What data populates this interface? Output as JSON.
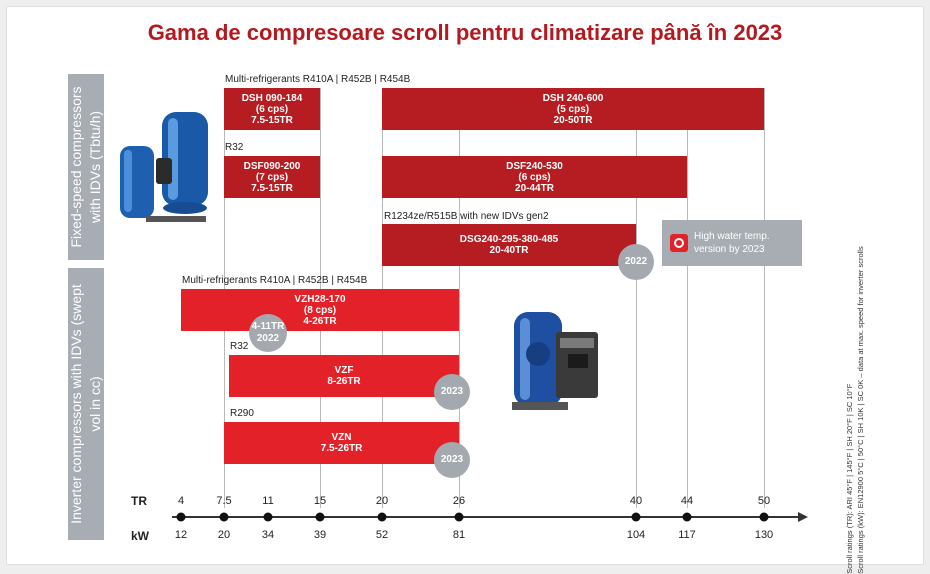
{
  "title": "Gama de compresoare scroll pentru climatizare până în 2023",
  "side_labels": {
    "fixed": "Fixed-speed compressors with IDVs (Tbtu/h)",
    "inverter": "Inverter compressors with IDVs (swept vol in cc)"
  },
  "groups": {
    "multi_fixed": "Multi-refrigerants R410A | R452B | R454B",
    "r32_fixed": "R32",
    "r1234": "R1234ze/R515B with new IDVs gen2",
    "multi_inv": "Multi-refrigerants R410A | R452B | R454B",
    "r32_inv": "R32",
    "r290": "R290"
  },
  "bars": {
    "dsh1": [
      "DSH 090-184",
      "(6 cps)",
      "7.5-15TR"
    ],
    "dsh2": [
      "DSH 240-600",
      "(5 cps)",
      "20-50TR"
    ],
    "dsf1": [
      "DSF090-200",
      "(7 cps)",
      "7.5-15TR"
    ],
    "dsf2": [
      "DSF240-530",
      "(6 cps)",
      "20-44TR"
    ],
    "dsg": [
      "DSG240-295-380-485",
      "20-40TR"
    ],
    "vzh": [
      "VZH28-170",
      "(8 cps)",
      "4-26TR"
    ],
    "vzf": [
      "VZF",
      "8-26TR"
    ],
    "vzn": [
      "VZN",
      "7.5-26TR"
    ]
  },
  "badges": {
    "dsg": "2022",
    "vzh_overlap": [
      "4-11TR",
      "2022"
    ],
    "vzf": "2023",
    "vzn": "2023"
  },
  "high_water": [
    "High water temp.",
    "version by 2023"
  ],
  "axis": {
    "tr_label": "TR",
    "kw_label": "kW",
    "tr": [
      "4",
      "7.5",
      "11",
      "15",
      "20",
      "26",
      "40",
      "44",
      "50"
    ],
    "kw": [
      "12",
      "20",
      "34",
      "39",
      "52",
      "81",
      "104",
      "117",
      "130"
    ]
  },
  "notes": [
    "Scroll ratings (TR): ARI 45°F | 145°F | SH 20°F | SC 10°F",
    "Scroll ratings (kW): EN12900 5°C | 50°C | SH 10K | SC 0K – data at max. speed for inverter scrolls"
  ],
  "colors": {
    "title": "#b3191f",
    "fixed_bar": "#b51d22",
    "inverter_bar": "#e32128",
    "side_panel": "#a7adb3",
    "compressor_blue": "#1f5fb0"
  }
}
